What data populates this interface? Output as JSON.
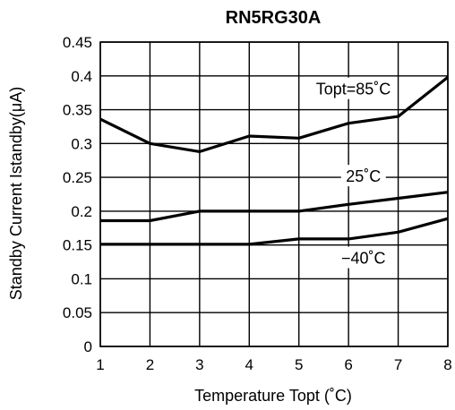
{
  "chart_data": {
    "type": "line",
    "title": "RN5RG30A",
    "xlabel": "Temperature Topt (˚C)",
    "ylabel": "Standby Current Istandby(μA)",
    "x": [
      1,
      2,
      3,
      4,
      5,
      6,
      7,
      8
    ],
    "xlim": [
      1,
      8
    ],
    "ylim": [
      0,
      0.45
    ],
    "x_ticks": [
      "1",
      "2",
      "3",
      "4",
      "5",
      "6",
      "7",
      "8"
    ],
    "y_ticks": [
      "0",
      "0.05",
      "0.1",
      "0.15",
      "0.2",
      "0.25",
      "0.3",
      "0.35",
      "0.4",
      "0.45"
    ],
    "grid": true,
    "series": [
      {
        "name": "Topt=85˚C",
        "values": [
          0.336,
          0.3,
          0.288,
          0.311,
          0.308,
          0.33,
          0.34,
          0.398
        ]
      },
      {
        "name": "25˚C",
        "values": [
          0.186,
          0.186,
          0.2,
          0.2,
          0.2,
          0.21,
          0.219,
          0.228
        ]
      },
      {
        "name": "−40˚C",
        "values": [
          0.151,
          0.151,
          0.151,
          0.151,
          0.159,
          0.159,
          0.169,
          0.189
        ]
      }
    ]
  }
}
